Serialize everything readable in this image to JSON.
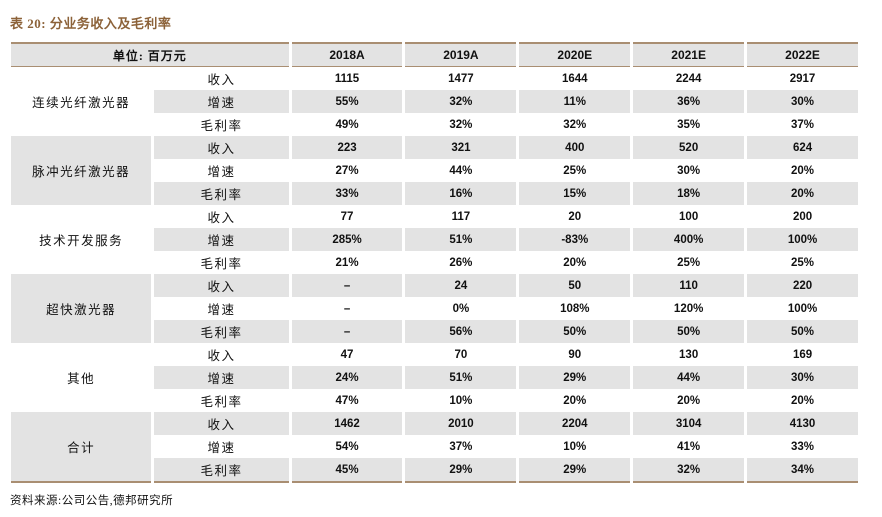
{
  "title": "表 20: 分业务收入及毛利率",
  "table": {
    "unit_header": "单位: 百万元",
    "year_columns": [
      "2018A",
      "2019A",
      "2020E",
      "2021E",
      "2022E"
    ],
    "metric_labels": [
      "收入",
      "增速",
      "毛利率"
    ],
    "groups": [
      {
        "name": "连续光纤激光器",
        "rows": [
          [
            "1115",
            "1477",
            "1644",
            "2244",
            "2917"
          ],
          [
            "55%",
            "32%",
            "11%",
            "36%",
            "30%"
          ],
          [
            "49%",
            "32%",
            "32%",
            "35%",
            "37%"
          ]
        ]
      },
      {
        "name": "脉冲光纤激光器",
        "rows": [
          [
            "223",
            "321",
            "400",
            "520",
            "624"
          ],
          [
            "27%",
            "44%",
            "25%",
            "30%",
            "20%"
          ],
          [
            "33%",
            "16%",
            "15%",
            "18%",
            "20%"
          ]
        ]
      },
      {
        "name": "技术开发服务",
        "rows": [
          [
            "77",
            "117",
            "20",
            "100",
            "200"
          ],
          [
            "285%",
            "51%",
            "-83%",
            "400%",
            "100%"
          ],
          [
            "21%",
            "26%",
            "20%",
            "25%",
            "25%"
          ]
        ]
      },
      {
        "name": "超快激光器",
        "rows": [
          [
            "–",
            "24",
            "50",
            "110",
            "220"
          ],
          [
            "–",
            "0%",
            "108%",
            "120%",
            "100%"
          ],
          [
            "–",
            "56%",
            "50%",
            "50%",
            "50%"
          ]
        ]
      },
      {
        "name": "其他",
        "rows": [
          [
            "47",
            "70",
            "90",
            "130",
            "169"
          ],
          [
            "24%",
            "51%",
            "29%",
            "44%",
            "30%"
          ],
          [
            "47%",
            "10%",
            "20%",
            "20%",
            "20%"
          ]
        ]
      },
      {
        "name": "合计",
        "rows": [
          [
            "1462",
            "2010",
            "2204",
            "3104",
            "4130"
          ],
          [
            "54%",
            "37%",
            "10%",
            "41%",
            "33%"
          ],
          [
            "45%",
            "29%",
            "29%",
            "32%",
            "34%"
          ]
        ]
      }
    ]
  },
  "footer": {
    "source": "资料来源:公司公告,德邦研究所"
  },
  "colors": {
    "accent_brown": "#8c6239",
    "line_brown": "#a98e72",
    "band_gray": "#e3e3e3"
  }
}
